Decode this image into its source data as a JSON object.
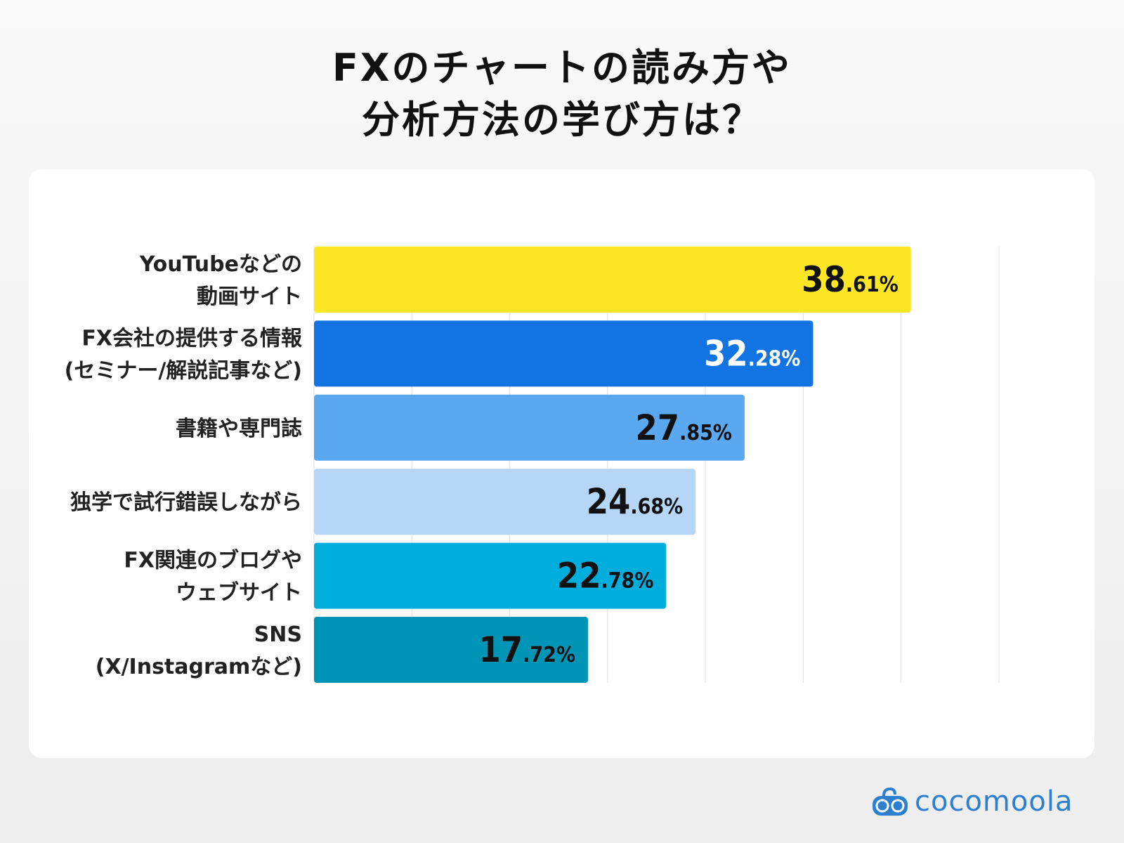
{
  "title_lines": [
    "FXのチャートの読み方や",
    "分析方法の学び方は？"
  ],
  "brand": {
    "name": "cocomoola",
    "color": "#2c7fd1"
  },
  "chart_data": {
    "type": "bar",
    "orientation": "horizontal",
    "title": "FXのチャートの読み方や分析方法の学び方は？",
    "categories": [
      [
        "YouTubeなどの",
        "動画サイト"
      ],
      [
        "FX会社の提供する情報",
        "(セミナー/解説記事など)"
      ],
      [
        "書籍や専門誌"
      ],
      [
        "独学で試行錯誤しながら"
      ],
      [
        "FX関連のブログや",
        "ウェブサイト"
      ],
      [
        "SNS",
        "(X/Instagramなど)"
      ]
    ],
    "values": [
      38.61,
      32.28,
      27.85,
      24.68,
      22.78,
      17.72
    ],
    "value_labels": [
      {
        "int": "38",
        "dec": ".61%"
      },
      {
        "int": "32",
        "dec": ".28%"
      },
      {
        "int": "27",
        "dec": ".85%"
      },
      {
        "int": "24",
        "dec": ".68%"
      },
      {
        "int": "22",
        "dec": ".78%"
      },
      {
        "int": "17",
        "dec": ".72%"
      }
    ],
    "colors": [
      "#fde725",
      "#1273e2",
      "#5aa8f0",
      "#b6d6f8",
      "#00aedd",
      "#0095b6"
    ],
    "label_colors": [
      "#111111",
      "#ffffff",
      "#111111",
      "#111111",
      "#111111",
      "#111111"
    ],
    "xlim": [
      0,
      44.3
    ],
    "grid": true,
    "grid_divisions": 7,
    "legend": "none"
  }
}
